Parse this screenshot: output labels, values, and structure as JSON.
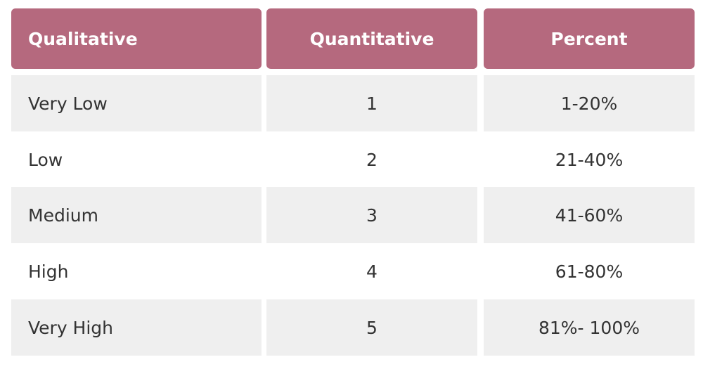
{
  "table": {
    "header": [
      "Qualitative",
      "Quantitative",
      "Percent"
    ],
    "rows": [
      [
        "Very Low",
        "1",
        "1-20%"
      ],
      [
        "Low",
        "2",
        "21-40%"
      ],
      [
        "Medium",
        "3",
        "41-60%"
      ],
      [
        "High",
        "4",
        "61-80%"
      ],
      [
        "Very High",
        "5",
        "81%- 100%"
      ]
    ]
  }
}
